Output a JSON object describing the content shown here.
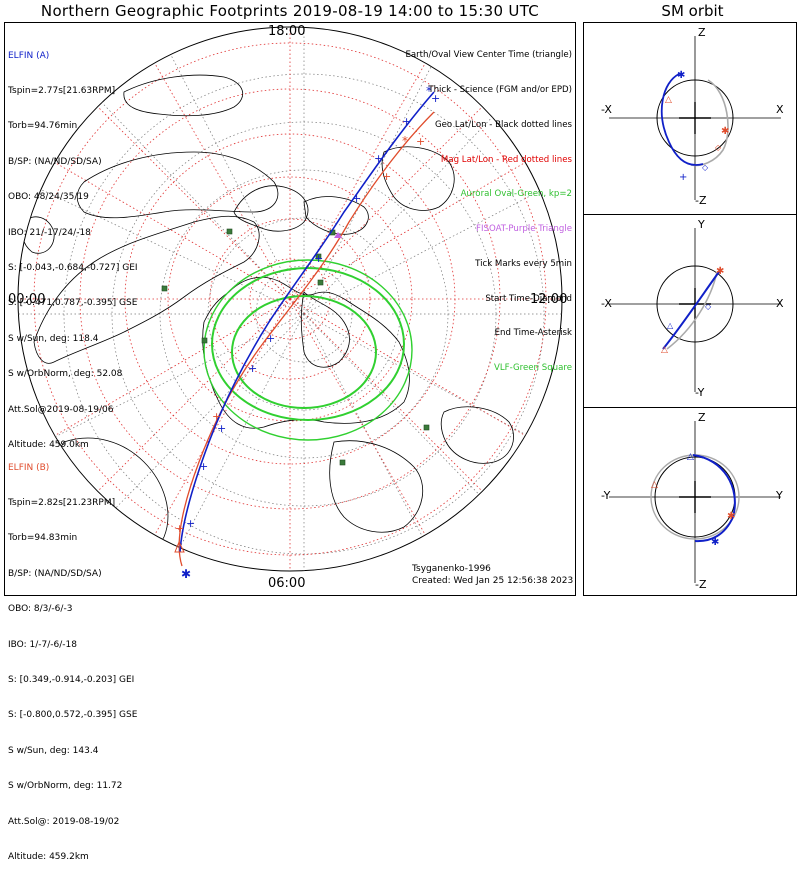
{
  "title": "Northern Geographic Footprints 2019-08-19 14:00 to 15:30 UTC",
  "sm_title": "SM orbit",
  "time_labels": {
    "top": "18:00",
    "left": "00:00",
    "right": "12:00",
    "bottom": "06:00"
  },
  "elfin_a": {
    "header": "ELFIN (A)",
    "lines": [
      "Tspin=2.77s[21.63RPM]",
      "Torb=94.76min",
      "B/SP: (NA/ND/SD/SA)",
      "OBO: 48/24/35/19",
      "IBO: 21/-17/24/-18",
      "S: [-0.043,-0.684,-0.727] GEI",
      "S: [-0.471,0.787,-0.395] GSE",
      "S w/Sun, deg: 118.4",
      "S w/OrbNorm, deg: 52.08",
      "Att.Sol@2019-08-19/06",
      "Altitude: 459.0km"
    ],
    "color": "#1020c8"
  },
  "elfin_b": {
    "header": "ELFIN (B)",
    "lines": [
      "Tspin=2.82s[21.23RPM]",
      "Torb=94.83min",
      "B/SP: (NA/ND/SD/SA)",
      "OBO: 8/3/-6/-3",
      "IBO: 1/-7/-6/-18",
      "S: [0.349,-0.914,-0.203] GEI",
      "S: [-0.800,0.572,-0.395] GSE",
      "S w/Sun, deg: 143.4",
      "S w/OrbNorm, deg: 11.72",
      "Att.Sol@: 2019-08-19/02",
      "Altitude: 459.2km"
    ],
    "color": "#e04c2c"
  },
  "legend": [
    {
      "text": "Earth/Oval View Center Time (triangle)",
      "color": "#000000"
    },
    {
      "text": "Thick - Science (FGM and/or EPD)",
      "color": "#000000"
    },
    {
      "text": "Geo Lat/Lon - Black dotted lines",
      "color": "#000000"
    },
    {
      "text": "Mag Lat/Lon - Red dotted lines",
      "color": "#e00000"
    },
    {
      "text": "Auroral Oval-Green, kp=2",
      "color": "#30c030"
    },
    {
      "text": "FISOAT-Purple Triangle",
      "color": "#c060e0"
    },
    {
      "text": "Tick Marks every 5min",
      "color": "#000000"
    },
    {
      "text": "Start Time-Diamond",
      "color": "#000000"
    },
    {
      "text": "End Time-Asterisk",
      "color": "#000000"
    },
    {
      "text": "VLF-Green Square",
      "color": "#30c030"
    }
  ],
  "footer": {
    "model": "Tsyganenko-1996",
    "created": "Created: Wed Jan 25 12:56:38 2023"
  },
  "sm_panels": [
    {
      "top_label": "Z",
      "bottom_label": "-Z",
      "left_label": "-X",
      "right_label": "X"
    },
    {
      "top_label": "Y",
      "bottom_label": "-Y",
      "left_label": "-X",
      "right_label": "X"
    },
    {
      "top_label": "Z",
      "bottom_label": "-Z",
      "left_label": "-Y",
      "right_label": "Y"
    }
  ],
  "colors": {
    "elfin_a": "#1020c8",
    "elfin_b": "#e04c2c",
    "oval": "#30c030",
    "vlf": "#3a7a3a",
    "mag_grid": "#e03030",
    "geo_grid": "#555555"
  }
}
